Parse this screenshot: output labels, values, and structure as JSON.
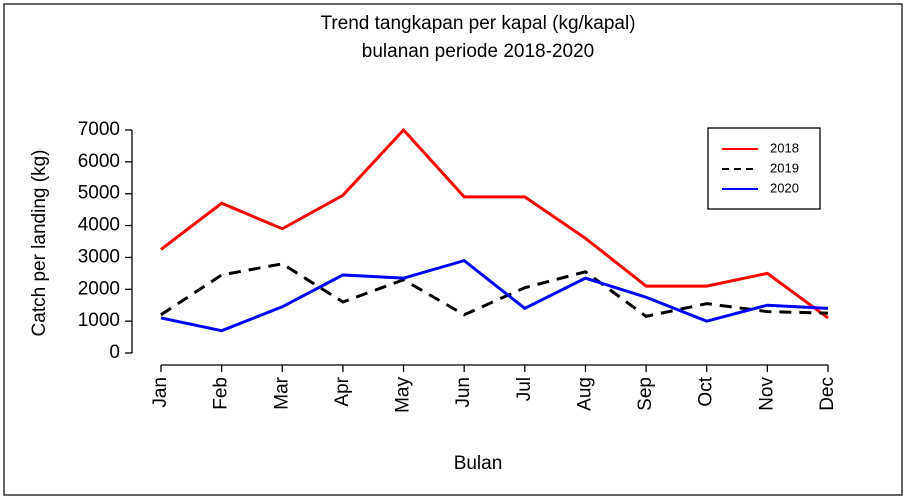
{
  "chart_data": {
    "type": "line",
    "title": "Trend tangkapan per kapal (kg/kapal)",
    "subtitle": "bulanan periode 2018-2020",
    "x_label": "Bulan",
    "y_label": "Catch per landing (kg)",
    "categories": [
      "Jan",
      "Feb",
      "Mar",
      "Apr",
      "May",
      "Jun",
      "Jul",
      "Aug",
      "Sep",
      "Oct",
      "Nov",
      "Dec"
    ],
    "series": [
      {
        "name": "2018",
        "color": "#ff0000",
        "linestyle": "solid",
        "values": [
          3250,
          4700,
          3900,
          4950,
          7000,
          4900,
          4900,
          3600,
          2100,
          2100,
          2500,
          1100
        ]
      },
      {
        "name": "2019",
        "color": "#000000",
        "linestyle": "dashed",
        "values": [
          1200,
          2450,
          2800,
          1600,
          2300,
          1200,
          2050,
          2550,
          1150,
          1550,
          1300,
          1250
        ]
      },
      {
        "name": "2020",
        "color": "#0000ff",
        "linestyle": "solid",
        "values": [
          1100,
          700,
          1450,
          2450,
          2350,
          2900,
          1400,
          2350,
          1750,
          1000,
          1500,
          1400
        ]
      }
    ],
    "ylim": [
      0,
      7000
    ],
    "yticks": [
      0,
      1000,
      2000,
      3000,
      4000,
      5000,
      6000,
      7000
    ],
    "legend": "topright",
    "grid": false
  }
}
